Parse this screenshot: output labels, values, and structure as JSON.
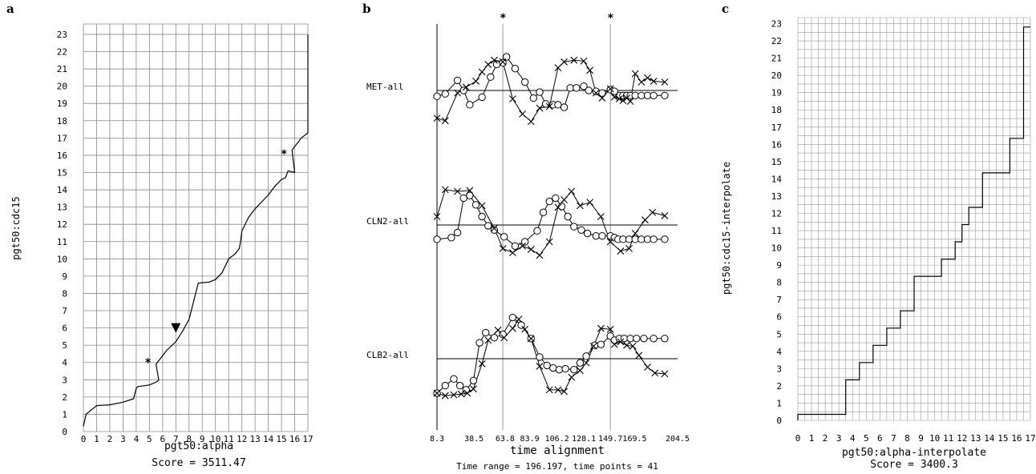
{
  "chart_data": [
    {
      "type": "line",
      "panel_label": "a",
      "xlabel": "pgt50:alpha",
      "ylabel": "pgt50:cdc15",
      "caption": "Score = 3511.47",
      "xlim": [
        0,
        17
      ],
      "ylim": [
        0,
        23
      ],
      "x_ticks": [
        "0",
        "1",
        "2",
        "3",
        "4",
        "5",
        "6",
        "7",
        "8",
        "9",
        "10",
        "11",
        "12",
        "13",
        "14",
        "15",
        "16",
        "17"
      ],
      "y_ticks": [
        "0",
        "1",
        "2",
        "3",
        "4",
        "5",
        "6",
        "7",
        "8",
        "9",
        "10",
        "11",
        "12",
        "13",
        "14",
        "15",
        "16",
        "17",
        "18",
        "19",
        "20",
        "21",
        "22",
        "23"
      ],
      "path": [
        [
          0,
          0.3
        ],
        [
          0.2,
          1.0
        ],
        [
          1,
          1.5
        ],
        [
          2,
          1.55
        ],
        [
          3,
          1.7
        ],
        [
          3.8,
          1.9
        ],
        [
          4,
          2.5
        ],
        [
          4.1,
          2.6
        ],
        [
          5,
          2.7
        ],
        [
          5.6,
          2.9
        ],
        [
          5.7,
          3.0
        ],
        [
          5.5,
          3.9
        ],
        [
          5.6,
          4.0
        ],
        [
          6.3,
          4.7
        ],
        [
          7,
          5.2
        ],
        [
          7.5,
          5.8
        ],
        [
          8,
          6.5
        ],
        [
          8.5,
          8.0
        ],
        [
          8.7,
          8.6
        ],
        [
          9.5,
          8.65
        ],
        [
          10,
          8.8
        ],
        [
          10.5,
          9.2
        ],
        [
          11,
          10.0
        ],
        [
          11.5,
          10.3
        ],
        [
          11.8,
          10.6
        ],
        [
          11.9,
          11.0
        ],
        [
          12,
          11.6
        ],
        [
          12.5,
          12.4
        ],
        [
          13,
          12.9
        ],
        [
          14,
          13.7
        ],
        [
          14.5,
          14.2
        ],
        [
          15,
          14.6
        ],
        [
          15.3,
          14.7
        ],
        [
          15.5,
          15.1
        ],
        [
          16,
          15.0
        ],
        [
          15.8,
          16.3
        ],
        [
          16.5,
          17.0
        ],
        [
          17,
          17.3
        ],
        [
          17,
          23
        ]
      ],
      "markers": [
        {
          "symbol": "*",
          "x": 5,
          "y": 4.0
        },
        {
          "symbol": "▼",
          "x": 7,
          "y": 6.0
        },
        {
          "symbol": "*",
          "x": 15.3,
          "y": 16.1
        }
      ]
    },
    {
      "type": "line",
      "panel_label": "b",
      "xlabel": "time alignment",
      "caption": "Time range = 196.197, time points = 41",
      "x_tick_labels": [
        "8.3",
        "38.5",
        "63.8",
        "83.9",
        "106.2",
        "128.1",
        "149.7",
        "169.5",
        "204.5"
      ],
      "star_lines": [
        62,
        149.7
      ],
      "series": [
        {
          "name": "MET-all",
          "circle_x": [
            8.3,
            15,
            25,
            30,
            35,
            45,
            52,
            57,
            62,
            65,
            72,
            80,
            87,
            92,
            97,
            103,
            107,
            112,
            117,
            122,
            128,
            132,
            138,
            143,
            149.7,
            153,
            157,
            160,
            163,
            166,
            170,
            175,
            180,
            185,
            194
          ],
          "circle_y": [
            -0.7,
            -0.4,
            1.2,
            0.0,
            -1.7,
            -0.8,
            1.6,
            3.1,
            3.3,
            4.0,
            2.6,
            1.0,
            -0.9,
            -0.2,
            -1.6,
            -1.7,
            -1.7,
            -2.0,
            0.3,
            0.3,
            0.5,
            0.0,
            -0.1,
            -0.3,
            0.1,
            -0.1,
            -0.6,
            -0.6,
            -0.6,
            -0.6,
            -0.6,
            -0.6,
            -0.6,
            -0.6,
            -0.6
          ],
          "cross_x": [
            8.3,
            15,
            25,
            32,
            40,
            45,
            50,
            55,
            62,
            70,
            78,
            85,
            92,
            100,
            107,
            112,
            120,
            128,
            133,
            138,
            143,
            149.7,
            153,
            157,
            160,
            163,
            166,
            170,
            175,
            180,
            185,
            194
          ],
          "cross_y": [
            -3.3,
            -3.6,
            -0.3,
            0.4,
            1.1,
            2.2,
            3.1,
            3.6,
            3.4,
            -1.0,
            -2.8,
            -3.7,
            -2.1,
            -1.9,
            2.7,
            3.4,
            3.6,
            3.5,
            2.4,
            -0.3,
            -0.9,
            0.2,
            -0.8,
            -1.0,
            -1.2,
            -0.9,
            -1.3,
            2.0,
            1.0,
            1.5,
            1.1,
            1.0
          ]
        },
        {
          "name": "CLN2-all",
          "circle_x": [
            8.3,
            20,
            25,
            30,
            35,
            40,
            45,
            50,
            55,
            63,
            72,
            80,
            90,
            95,
            100,
            105,
            110,
            115,
            120,
            126,
            131,
            138,
            143,
            149.7,
            153,
            156,
            160,
            165,
            170,
            175,
            180,
            185,
            194
          ],
          "circle_y": [
            -1.7,
            -1.5,
            -0.9,
            3.2,
            3.5,
            2.4,
            1.0,
            -0.1,
            -0.6,
            -1.4,
            -2.5,
            -2.0,
            -0.7,
            1.5,
            2.8,
            3.2,
            2.2,
            1.0,
            -0.2,
            -0.6,
            -1.0,
            -1.3,
            -1.3,
            -1.3,
            -1.5,
            -1.7,
            -1.7,
            -1.7,
            -1.7,
            -1.7,
            -1.7,
            -1.7,
            -1.7
          ],
          "cross_x": [
            8.3,
            15,
            25,
            35,
            45,
            55,
            62,
            70,
            78,
            85,
            92,
            100,
            107,
            112,
            118,
            125,
            133,
            142,
            149.7,
            158,
            165,
            170,
            178,
            184,
            194
          ],
          "cross_y": [
            1.0,
            4.2,
            4.0,
            4.1,
            2.3,
            -0.4,
            -2.8,
            -3.3,
            -2.5,
            -2.9,
            -3.6,
            -2.0,
            2.1,
            3.0,
            4.0,
            2.3,
            2.7,
            1.0,
            -2.0,
            -3.1,
            -2.8,
            -1.0,
            0.6,
            1.5,
            1.1
          ]
        },
        {
          "name": "CLB2-all",
          "circle_x": [
            8.3,
            15,
            22,
            27,
            32,
            38,
            43,
            48,
            55,
            62,
            70,
            77,
            85,
            92,
            98,
            103,
            108,
            113,
            120,
            125,
            130,
            137,
            142,
            149.7,
            153,
            157,
            161,
            166,
            171,
            177,
            185,
            194
          ],
          "circle_y": [
            -4.1,
            -3.2,
            -2.4,
            -3.2,
            -3.7,
            -2.6,
            1.9,
            3.1,
            2.5,
            2.9,
            4.9,
            4.0,
            2.4,
            0.2,
            -0.8,
            -1.1,
            -1.3,
            -1.2,
            -1.3,
            -0.5,
            0.3,
            1.6,
            1.7,
            2.7,
            2.2,
            2.4,
            2.4,
            2.4,
            2.4,
            2.4,
            2.4,
            2.4
          ],
          "cross_x": [
            8.3,
            15,
            22,
            28,
            33,
            38,
            45,
            50,
            58,
            63,
            70,
            75,
            80,
            85,
            92,
            100,
            107,
            112,
            118,
            125,
            130,
            136,
            142,
            149.7,
            153,
            158,
            163,
            168,
            173,
            180,
            186,
            194
          ],
          "cross_y": [
            -4.1,
            -4.4,
            -4.3,
            -4.2,
            -4.1,
            -3.6,
            -0.6,
            2.2,
            3.4,
            2.5,
            3.6,
            4.7,
            3.5,
            2.4,
            -0.9,
            -3.7,
            -3.7,
            -3.9,
            -2.2,
            -1.4,
            -0.5,
            1.5,
            3.6,
            3.5,
            1.7,
            2.0,
            1.6,
            1.5,
            0.4,
            -1.0,
            -1.7,
            -1.8
          ]
        }
      ]
    },
    {
      "type": "line",
      "panel_label": "c",
      "xlabel": "pgt50:alpha-interpolate",
      "ylabel": "pgt50:cdc15-interpolate",
      "caption": "Score = 3400.3",
      "xlim": [
        0,
        17
      ],
      "ylim": [
        0,
        23
      ],
      "x_ticks": [
        "0",
        "1",
        "2",
        "3",
        "4",
        "5",
        "6",
        "7",
        "8",
        "9",
        "10",
        "11",
        "12",
        "13",
        "14",
        "15",
        "16",
        "17"
      ],
      "y_ticks": [
        "0",
        "1",
        "2",
        "3",
        "4",
        "5",
        "6",
        "7",
        "8",
        "9",
        "10",
        "11",
        "12",
        "13",
        "14",
        "15",
        "16",
        "17",
        "18",
        "19",
        "20",
        "21",
        "22",
        "23"
      ],
      "path": [
        [
          0,
          0
        ],
        [
          0,
          0.35
        ],
        [
          3.5,
          0.35
        ],
        [
          3.5,
          2.35
        ],
        [
          4.5,
          2.35
        ],
        [
          4.5,
          3.35
        ],
        [
          5.5,
          3.35
        ],
        [
          5.5,
          4.35
        ],
        [
          6.5,
          4.35
        ],
        [
          6.5,
          5.35
        ],
        [
          7.5,
          5.35
        ],
        [
          7.5,
          6.35
        ],
        [
          8.5,
          6.35
        ],
        [
          8.5,
          8.35
        ],
        [
          10.5,
          8.35
        ],
        [
          10.5,
          9.35
        ],
        [
          11.5,
          9.35
        ],
        [
          11.5,
          10.35
        ],
        [
          12,
          10.35
        ],
        [
          12,
          11.35
        ],
        [
          12.5,
          11.35
        ],
        [
          12.5,
          12.35
        ],
        [
          13.5,
          12.35
        ],
        [
          13.5,
          14.35
        ],
        [
          15.5,
          14.35
        ],
        [
          15.5,
          16.35
        ],
        [
          16.5,
          16.35
        ],
        [
          16.5,
          22.8
        ],
        [
          17,
          22.8
        ]
      ]
    }
  ]
}
